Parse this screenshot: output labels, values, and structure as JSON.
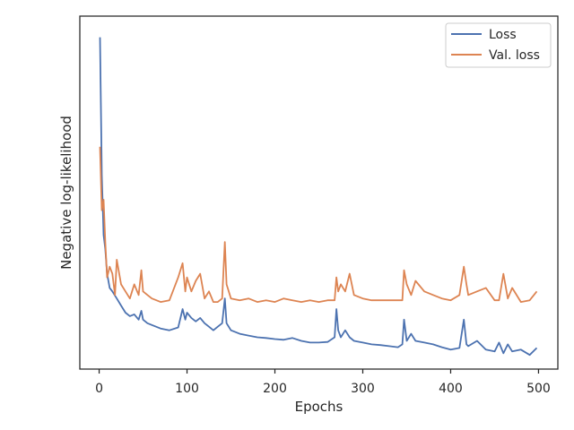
{
  "chart_data": {
    "type": "line",
    "xlabel": "Epochs",
    "ylabel": "Negative log-likelihood",
    "xlim": [
      -22,
      522
    ],
    "ylim": [
      0,
      100
    ],
    "x_ticks": [
      0,
      100,
      200,
      300,
      400,
      500
    ],
    "x_tick_labels": [
      "0",
      "100",
      "200",
      "300",
      "400",
      "500"
    ],
    "y_tick_labels_shown": false,
    "grid": false,
    "legend_position": "top-right",
    "series": [
      {
        "name": "Loss",
        "color": "#4c72b0",
        "x": [
          1,
          3,
          5,
          7,
          9,
          12,
          15,
          20,
          25,
          30,
          35,
          40,
          45,
          48,
          50,
          55,
          60,
          70,
          80,
          90,
          95,
          98,
          100,
          105,
          110,
          115,
          120,
          125,
          130,
          135,
          140,
          143,
          145,
          150,
          160,
          170,
          180,
          190,
          200,
          210,
          220,
          230,
          240,
          250,
          260,
          268,
          270,
          272,
          275,
          280,
          285,
          290,
          300,
          310,
          320,
          330,
          340,
          345,
          347,
          350,
          355,
          360,
          370,
          380,
          390,
          400,
          410,
          415,
          418,
          420,
          430,
          440,
          450,
          455,
          460,
          465,
          470,
          480,
          490,
          498
        ],
        "values": [
          94,
          55,
          38,
          34,
          27,
          23,
          22,
          20,
          18,
          16,
          15,
          15.5,
          14,
          16.5,
          14,
          13,
          12.5,
          11.5,
          11,
          11.8,
          17,
          14,
          16,
          14.5,
          13.5,
          14.5,
          13,
          12,
          11,
          12,
          13,
          20,
          13,
          11,
          10,
          9.5,
          9,
          8.8,
          8.5,
          8.3,
          8.8,
          8,
          7.5,
          7.5,
          7.7,
          9,
          17,
          11,
          9,
          11,
          9,
          8,
          7.5,
          7,
          6.8,
          6.5,
          6.2,
          7,
          14,
          8,
          10,
          8,
          7.5,
          7,
          6.2,
          5.5,
          6,
          14,
          7,
          6.5,
          8,
          5.5,
          5,
          7.5,
          4.5,
          7,
          5,
          5.5,
          4,
          6
        ]
      },
      {
        "name": "Val. loss",
        "color": "#dd8452",
        "x": [
          1,
          3,
          5,
          7,
          9,
          12,
          15,
          18,
          20,
          25,
          30,
          35,
          40,
          45,
          48,
          50,
          55,
          60,
          70,
          80,
          90,
          95,
          98,
          100,
          105,
          110,
          115,
          120,
          125,
          130,
          135,
          140,
          143,
          145,
          150,
          160,
          170,
          180,
          190,
          200,
          210,
          220,
          230,
          240,
          250,
          260,
          268,
          270,
          272,
          275,
          280,
          285,
          290,
          300,
          310,
          320,
          330,
          340,
          345,
          347,
          350,
          355,
          360,
          370,
          380,
          390,
          400,
          410,
          415,
          418,
          420,
          430,
          440,
          450,
          455,
          460,
          465,
          470,
          480,
          490,
          498
        ],
        "values": [
          63,
          45,
          48,
          36,
          26,
          29,
          27,
          21,
          31,
          24,
          22,
          20,
          24,
          21,
          28,
          22,
          21,
          20,
          19,
          19.5,
          26,
          30,
          22,
          26,
          22,
          25,
          27,
          20,
          22,
          19,
          19,
          20,
          36,
          24,
          20,
          19.5,
          20,
          19,
          19.5,
          19,
          20,
          19.5,
          19,
          19.5,
          19,
          19.5,
          19.5,
          26,
          22,
          24,
          22,
          27,
          21,
          20,
          19.5,
          19.5,
          19.5,
          19.5,
          19.5,
          28,
          24,
          21,
          25,
          22,
          21,
          20,
          19.5,
          21,
          29,
          24,
          21,
          22,
          23,
          19.5,
          19.5,
          27,
          20,
          23,
          19,
          19.5,
          22
        ]
      }
    ]
  }
}
